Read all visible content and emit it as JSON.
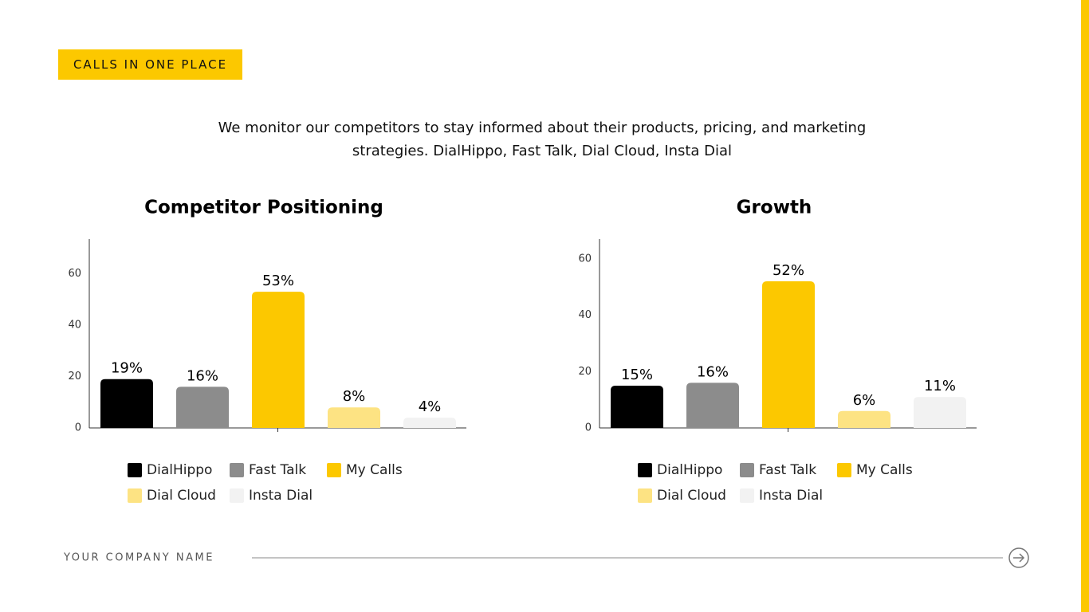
{
  "header": {
    "tag": "CALLS IN ONE PLACE"
  },
  "description": "We monitor our competitors to stay informed about their products, pricing, and marketing strategies. DialHippo, Fast Talk, Dial Cloud, Insta Dial",
  "footer": {
    "company": "YOUR COMPANY NAME"
  },
  "chart_data": [
    {
      "type": "bar",
      "title": "Competitor Positioning",
      "categories": [
        "DialHippo",
        "Fast Talk",
        "My Calls",
        "Dial Cloud",
        "Insta Dial"
      ],
      "values": [
        19,
        16,
        53,
        8,
        4
      ],
      "value_labels": [
        "19%",
        "16%",
        "53%",
        "8%",
        "4%"
      ],
      "colors": [
        "#000000",
        "#8c8c8c",
        "#fcc800",
        "#fde383",
        "#f2f2f2"
      ],
      "ylim": [
        0,
        73.5
      ],
      "yticks": [
        0,
        20,
        40,
        60
      ],
      "grid": false,
      "legend": "bottom"
    },
    {
      "type": "bar",
      "title": "Growth",
      "categories": [
        "DialHippo",
        "Fast Talk",
        "My Calls",
        "Dial Cloud",
        "Insta Dial"
      ],
      "values": [
        15,
        16,
        52,
        6,
        11
      ],
      "value_labels": [
        "15%",
        "16%",
        "52%",
        "6%",
        "11%"
      ],
      "colors": [
        "#000000",
        "#8c8c8c",
        "#fcc800",
        "#fde383",
        "#f2f2f2"
      ],
      "ylim": [
        0,
        67
      ],
      "yticks": [
        0,
        20,
        40,
        60
      ],
      "grid": false,
      "legend": "bottom"
    }
  ]
}
